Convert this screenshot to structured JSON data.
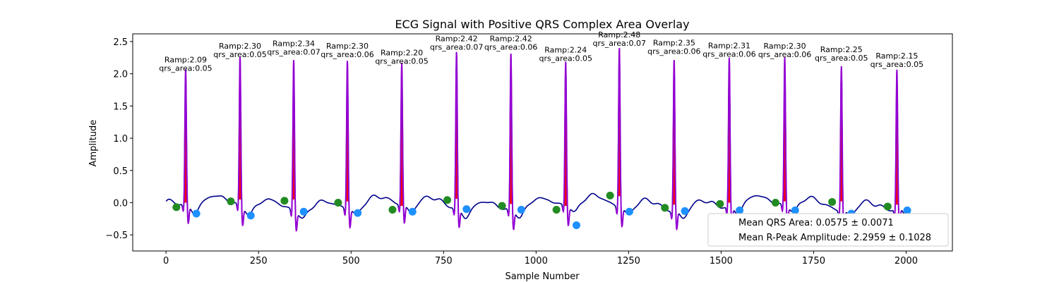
{
  "chart_data": {
    "type": "line",
    "title": "ECG Signal with Positive QRS Complex Area Overlay",
    "xlabel": "Sample Number",
    "ylabel": "Amplitude",
    "xlim": [
      -90,
      2125
    ],
    "ylim": [
      -0.75,
      2.62
    ],
    "xticks": [
      0,
      250,
      500,
      750,
      1000,
      1250,
      1500,
      1750,
      2000
    ],
    "xtick_labels": [
      "0",
      "250",
      "500",
      "750",
      "1000",
      "1250",
      "1500",
      "1750",
      "2000"
    ],
    "yticks": [
      -0.5,
      0.0,
      0.5,
      1.0,
      1.5,
      2.0,
      2.5
    ],
    "ytick_labels": [
      "−0.5",
      "0.0",
      "0.5",
      "1.0",
      "1.5",
      "2.0",
      "2.5"
    ],
    "grid": false,
    "legend_position": "lower-right",
    "colors": {
      "signal": "#00008b",
      "qrs_segment": "#9400d3",
      "qrs_fill": "#ff0000",
      "onset_marker": "#228b22",
      "offset_marker": "#1e90ff"
    },
    "legend": [
      "Mean QRS Area: 0.0575 ± 0.0071",
      "Mean R-Peak Amplitude: 2.2959 ± 0.1028"
    ],
    "beats": [
      {
        "r_peak": 53,
        "r_amp": 2.09,
        "onset": 28,
        "onset_y": -0.07,
        "offset": 82,
        "offset_y": -0.17,
        "baseline": 0.0,
        "ramp_label": "Ramp:2.09",
        "area_label": "qrs_area:0.05"
      },
      {
        "r_peak": 200,
        "r_amp": 2.3,
        "onset": 175,
        "onset_y": 0.02,
        "offset": 229,
        "offset_y": -0.2,
        "baseline": 0.05,
        "ramp_label": "Ramp:2.30",
        "area_label": "qrs_area:0.05"
      },
      {
        "r_peak": 345,
        "r_amp": 2.34,
        "onset": 320,
        "onset_y": 0.03,
        "offset": 372,
        "offset_y": -0.14,
        "baseline": 0.05,
        "ramp_label": "Ramp:2.34",
        "area_label": "qrs_area:0.07"
      },
      {
        "r_peak": 490,
        "r_amp": 2.3,
        "onset": 465,
        "onset_y": 0.0,
        "offset": 518,
        "offset_y": -0.16,
        "baseline": 0.02,
        "ramp_label": "Ramp:2.30",
        "area_label": "qrs_area:0.06"
      },
      {
        "r_peak": 637,
        "r_amp": 2.2,
        "onset": 612,
        "onset_y": -0.11,
        "offset": 666,
        "offset_y": -0.14,
        "baseline": -0.05,
        "ramp_label": "Ramp:2.20",
        "area_label": "qrs_area:0.05"
      },
      {
        "r_peak": 785,
        "r_amp": 2.42,
        "onset": 760,
        "onset_y": 0.04,
        "offset": 812,
        "offset_y": -0.1,
        "baseline": 0.06,
        "ramp_label": "Ramp:2.42",
        "area_label": "qrs_area:0.07"
      },
      {
        "r_peak": 932,
        "r_amp": 2.42,
        "onset": 908,
        "onset_y": -0.05,
        "offset": 960,
        "offset_y": -0.11,
        "baseline": -0.02,
        "ramp_label": "Ramp:2.42",
        "area_label": "qrs_area:0.06"
      },
      {
        "r_peak": 1080,
        "r_amp": 2.24,
        "onset": 1055,
        "onset_y": -0.11,
        "offset": 1109,
        "offset_y": -0.35,
        "baseline": -0.05,
        "ramp_label": "Ramp:2.24",
        "area_label": "qrs_area:0.05"
      },
      {
        "r_peak": 1225,
        "r_amp": 2.48,
        "onset": 1200,
        "onset_y": 0.11,
        "offset": 1252,
        "offset_y": -0.14,
        "baseline": 0.1,
        "ramp_label": "Ramp:2.48",
        "area_label": "qrs_area:0.07"
      },
      {
        "r_peak": 1373,
        "r_amp": 2.35,
        "onset": 1348,
        "onset_y": -0.08,
        "offset": 1402,
        "offset_y": -0.13,
        "baseline": -0.03,
        "ramp_label": "Ramp:2.35",
        "area_label": "qrs_area:0.06"
      },
      {
        "r_peak": 1522,
        "r_amp": 2.31,
        "onset": 1497,
        "onset_y": -0.02,
        "offset": 1550,
        "offset_y": -0.12,
        "baseline": 0.0,
        "ramp_label": "Ramp:2.31",
        "area_label": "qrs_area:0.06"
      },
      {
        "r_peak": 1672,
        "r_amp": 2.3,
        "onset": 1647,
        "onset_y": 0.0,
        "offset": 1700,
        "offset_y": -0.12,
        "baseline": 0.02,
        "ramp_label": "Ramp:2.30",
        "area_label": "qrs_area:0.06"
      },
      {
        "r_peak": 1825,
        "r_amp": 2.25,
        "onset": 1800,
        "onset_y": 0.01,
        "offset": 1852,
        "offset_y": -0.17,
        "baseline": 0.02,
        "ramp_label": "Ramp:2.25",
        "area_label": "qrs_area:0.05"
      },
      {
        "r_peak": 1975,
        "r_amp": 2.15,
        "onset": 1950,
        "onset_y": -0.06,
        "offset": 2003,
        "offset_y": -0.12,
        "baseline": -0.03,
        "ramp_label": "Ramp:2.15",
        "area_label": "qrs_area:0.05"
      }
    ]
  }
}
